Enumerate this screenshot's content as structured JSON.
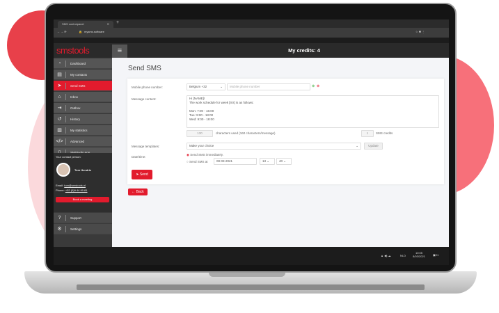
{
  "browser": {
    "tab_title": "SMS controlpanel",
    "url": "mysms.software"
  },
  "header": {
    "logo": "smstools",
    "credits": "My credits: 4"
  },
  "sidebar": {
    "items": [
      {
        "label": "Dashboard",
        "icon": "gauge-icon"
      },
      {
        "label": "My contacts",
        "icon": "contacts-icon"
      },
      {
        "label": "Send SMS",
        "icon": "paper-plane-icon",
        "active": true
      },
      {
        "label": "Inbox",
        "icon": "inbox-icon"
      },
      {
        "label": "Outbox",
        "icon": "outbox-icon"
      },
      {
        "label": "History",
        "icon": "history-icon"
      },
      {
        "label": "My statistics",
        "icon": "chart-icon"
      },
      {
        "label": "Advanced",
        "icon": "code-icon"
      },
      {
        "label": "SMStools App",
        "icon": "phone-icon"
      }
    ],
    "contact": {
      "heading": "Your contact person:",
      "name": "Tom Hendrix",
      "email_label": "Email:",
      "email": "tom@smstools.nl",
      "phone_label": "Phone:",
      "phone": "+32 (0)9 44 90 81",
      "meeting": "Book a meeting"
    },
    "bottom": [
      {
        "label": "Support",
        "icon": "question-icon"
      },
      {
        "label": "Settings",
        "icon": "gears-icon"
      }
    ]
  },
  "main": {
    "title": "Send SMS",
    "phone_label": "Mobile phone number:",
    "country": "Belgium +32",
    "phone_placeholder": "Mobile phone number",
    "content_label": "Message content:",
    "message": "Hi [NAME]!\nThe work schedule for week [XX] is as follows:\n\nMon: 7:00 - 16:00\nTue:  9:00 - 18:00\nWed: 9:00 - 18:00",
    "chars": "130",
    "chars_text": "characters used (160 characters/message)",
    "credits": "1",
    "credits_text": "SMS credits",
    "templates_label": "Message templates:",
    "template": "Make your choice",
    "update": "Update",
    "datetime_label": "Date/time:",
    "opt_now": "Send SMS immediately.",
    "opt_at": "Send SMS at",
    "date": "08-03-2021",
    "hour": "13",
    "minute": "40",
    "send": "Send",
    "back": "Back"
  },
  "taskbar": {
    "lang": "NLD",
    "time": "10:05",
    "date": "8/03/2021",
    "notifications": "21"
  },
  "colors": {
    "accent": "#e21b2d"
  }
}
